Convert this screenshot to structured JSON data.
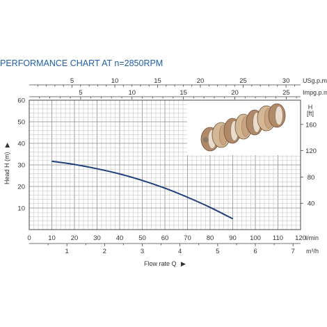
{
  "chart_data": {
    "type": "line",
    "title": "PERFORMANCE CHART AT n=2850RPM",
    "xlabel": "Flow rate Q",
    "ylabel": "Head H (m)",
    "x_unit_primary": "l/min",
    "x_unit_secondary": "m³/h",
    "top_units": [
      "USg.p.m",
      "Impg.p.m"
    ],
    "right_axis_label": "H\n[ft]",
    "xlim": [
      0,
      120
    ],
    "ylim": [
      0,
      60
    ],
    "x_ticks": [
      0,
      10,
      20,
      30,
      40,
      50,
      60,
      70,
      80,
      90,
      100,
      110,
      120
    ],
    "y_ticks": [
      10,
      20,
      30,
      40,
      50,
      60
    ],
    "m3h_ticks": [
      1,
      2,
      3,
      4,
      5,
      6,
      7
    ],
    "usgpm_ticks": [
      5,
      10,
      15,
      20,
      25,
      30
    ],
    "impgpm_ticks": [
      5,
      10,
      15,
      20,
      25
    ],
    "ft_ticks": [
      40,
      80,
      120,
      160
    ],
    "grid": true,
    "legend": "none",
    "curve_color": "#1d3f7a",
    "series": [
      {
        "x": [
          10,
          20,
          30,
          40,
          50,
          60,
          70,
          80,
          90
        ],
        "y": [
          31.7,
          30.2,
          28.2,
          25.8,
          22.8,
          19.2,
          15.0,
          10.3,
          5.0
        ]
      }
    ]
  },
  "image": {
    "semantic": "pump-impellers-photo"
  }
}
